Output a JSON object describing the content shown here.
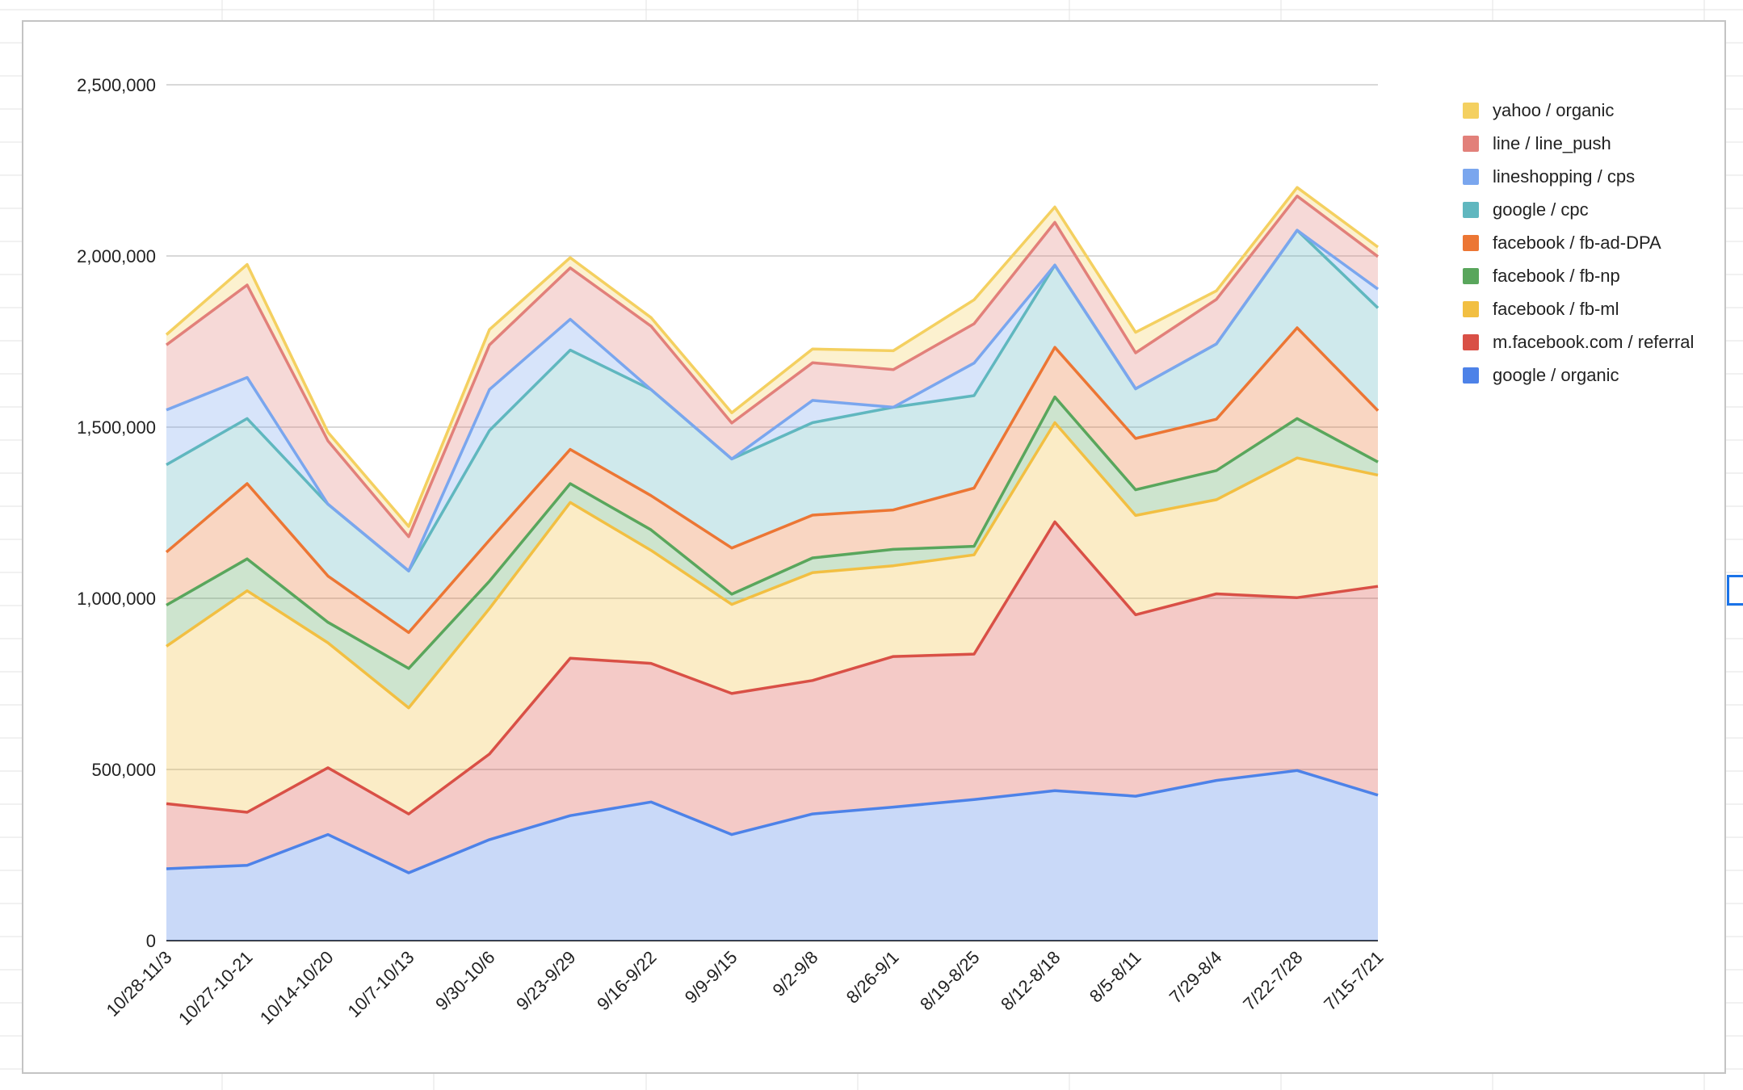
{
  "chart_data": {
    "type": "area",
    "stacked": true,
    "categories": [
      "10/28-11/3",
      "10/27-10-21",
      "10/14-10/20",
      "10/7-10/13",
      "9/30-10/6",
      "9/23-9/29",
      "9/16-9/22",
      "9/9-9/15",
      "9/2-9/8",
      "8/26-9/1",
      "8/19-8/25",
      "8/12-8/18",
      "8/5-8/11",
      "7/29-8/4",
      "7/22-7/28",
      "7/15-7/21"
    ],
    "ylim": [
      0,
      2500000
    ],
    "yticks": [
      "0",
      "500,000",
      "1,000,000",
      "1,500,000",
      "2,000,000",
      "2,500,000"
    ],
    "ytick_values": [
      0,
      500000,
      1000000,
      1500000,
      2000000,
      2500000
    ],
    "grid": true,
    "legend_position": "right",
    "series": [
      {
        "name": "google / organic",
        "color": "#4d82e8",
        "values": [
          210000,
          220000,
          310000,
          198000,
          295000,
          365000,
          405000,
          310000,
          370000,
          390000,
          412000,
          438000,
          422000,
          468000,
          497000,
          425000
        ]
      },
      {
        "name": "m.facebook.com / referral",
        "color": "#d95046",
        "values": [
          190000,
          155000,
          195000,
          172000,
          250000,
          460000,
          405000,
          412000,
          390000,
          440000,
          425000,
          785000,
          530000,
          545000,
          505000,
          610000
        ]
      },
      {
        "name": "facebook / fb-ml",
        "color": "#f2bf42",
        "values": [
          460000,
          647000,
          365000,
          310000,
          425000,
          455000,
          330000,
          260000,
          315000,
          265000,
          290000,
          290000,
          290000,
          275000,
          408000,
          325000
        ]
      },
      {
        "name": "facebook / fb-np",
        "color": "#59a65c",
        "values": [
          120000,
          93000,
          60000,
          115000,
          80000,
          55000,
          60000,
          30000,
          43000,
          48000,
          25000,
          75000,
          75000,
          85000,
          115000,
          38000
        ]
      },
      {
        "name": "facebook / fb-ad-DPA",
        "color": "#ec7634",
        "values": [
          155000,
          220000,
          135000,
          105000,
          120000,
          100000,
          100000,
          135000,
          125000,
          115000,
          170000,
          145000,
          150000,
          150000,
          265000,
          150000
        ]
      },
      {
        "name": "google / cpc",
        "color": "#60b7bf",
        "values": [
          255000,
          190000,
          210000,
          180000,
          320000,
          290000,
          310000,
          260000,
          270000,
          300000,
          270000,
          240000,
          145000,
          220000,
          285000,
          300000
        ]
      },
      {
        "name": "lineshopping / cps",
        "color": "#7aa6ee",
        "values": [
          160000,
          120000,
          0,
          0,
          120000,
          90000,
          0,
          0,
          65000,
          0,
          95000,
          0,
          0,
          0,
          0,
          55000
        ]
      },
      {
        "name": "line / line_push",
        "color": "#e2807a",
        "values": [
          190000,
          270000,
          185000,
          100000,
          130000,
          150000,
          185000,
          105000,
          110000,
          110000,
          115000,
          125000,
          105000,
          130000,
          100000,
          95000
        ]
      },
      {
        "name": "yahoo / organic",
        "color": "#f4d060",
        "values": [
          30000,
          60000,
          25000,
          30000,
          45000,
          30000,
          25000,
          30000,
          40000,
          55000,
          70000,
          45000,
          60000,
          25000,
          25000,
          28000
        ]
      }
    ]
  }
}
